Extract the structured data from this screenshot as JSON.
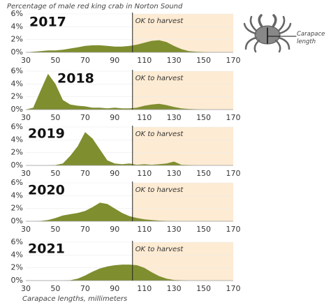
{
  "title": "Percentage of male red king crab in Norton Sound",
  "x_label": "Carapace lengths, millimeters",
  "icon_label": "Carapace length",
  "chart_data": [
    {
      "type": "area",
      "title": "2017",
      "color": "#7f8e2f",
      "x": [
        30,
        35,
        40,
        45,
        50,
        55,
        60,
        65,
        70,
        75,
        80,
        85,
        90,
        95,
        100,
        105,
        110,
        115,
        120,
        125,
        130,
        135,
        140,
        145,
        150,
        155,
        160,
        165,
        170
      ],
      "values": [
        0,
        0.1,
        0.2,
        0.3,
        0.3,
        0.4,
        0.6,
        0.8,
        1.0,
        1.1,
        1.1,
        1.0,
        0.9,
        0.9,
        1.0,
        1.2,
        1.5,
        1.8,
        1.9,
        1.6,
        1.0,
        0.5,
        0.2,
        0.1,
        0.05,
        0,
        0,
        0,
        0
      ],
      "xlim": [
        30,
        170
      ],
      "xticks": [
        30,
        50,
        70,
        90,
        110,
        130,
        150,
        170
      ],
      "ylim": [
        0,
        6
      ],
      "yticks": [
        {
          "value": 0,
          "label": "0%"
        },
        {
          "value": 2,
          "label": "2%"
        },
        {
          "value": 4,
          "label": "4%"
        },
        {
          "value": 6,
          "label": "6%"
        }
      ],
      "threshold": 102,
      "threshold_label": "OK to harvest",
      "shade_color": "#fdebd3",
      "grid": true
    },
    {
      "type": "area",
      "title": "2018",
      "color": "#7f8e2f",
      "x": [
        30,
        35,
        40,
        45,
        50,
        55,
        60,
        65,
        70,
        75,
        80,
        85,
        90,
        95,
        100,
        105,
        110,
        115,
        120,
        125,
        130,
        135,
        140,
        145,
        150,
        155,
        160,
        165,
        170
      ],
      "values": [
        0,
        0.3,
        3.0,
        5.6,
        4.0,
        1.5,
        0.8,
        0.6,
        0.5,
        0.3,
        0.3,
        0.2,
        0.3,
        0.2,
        0.2,
        0.3,
        0.6,
        0.8,
        0.9,
        0.7,
        0.4,
        0.2,
        0.1,
        0.05,
        0,
        0,
        0,
        0,
        0
      ],
      "xlim": [
        30,
        170
      ],
      "xticks": [
        30,
        50,
        70,
        90,
        110,
        130,
        150,
        170
      ],
      "ylim": [
        0,
        6
      ],
      "yticks": [
        {
          "value": 0,
          "label": "0%"
        },
        {
          "value": 2,
          "label": "2%"
        },
        {
          "value": 4,
          "label": "4%"
        },
        {
          "value": 6,
          "label": "6%"
        }
      ],
      "threshold": 102,
      "threshold_label": "OK to harvest",
      "shade_color": "#fdebd3",
      "grid": true
    },
    {
      "type": "area",
      "title": "2019",
      "color": "#7f8e2f",
      "x": [
        30,
        35,
        40,
        45,
        50,
        55,
        60,
        65,
        70,
        75,
        80,
        85,
        90,
        95,
        100,
        105,
        110,
        115,
        120,
        125,
        130,
        135,
        140,
        145,
        150,
        155,
        160,
        165,
        170
      ],
      "values": [
        0,
        0,
        0,
        0,
        0.05,
        0.3,
        1.5,
        3.0,
        5.2,
        4.2,
        2.5,
        0.8,
        0.3,
        0.2,
        0.3,
        0.1,
        0.2,
        0.1,
        0.2,
        0.3,
        0.6,
        0.1,
        0.05,
        0,
        0,
        0,
        0,
        0,
        0
      ],
      "xlim": [
        30,
        170
      ],
      "xticks": [
        30,
        50,
        70,
        90,
        110,
        130,
        150,
        170
      ],
      "ylim": [
        0,
        6
      ],
      "yticks": [
        {
          "value": 0,
          "label": "0%"
        },
        {
          "value": 2,
          "label": "2%"
        },
        {
          "value": 4,
          "label": "4%"
        },
        {
          "value": 6,
          "label": "6%"
        }
      ],
      "threshold": 102,
      "threshold_label": "OK to harvest",
      "shade_color": "#fdebd3",
      "grid": true
    },
    {
      "type": "area",
      "title": "2020",
      "color": "#7f8e2f",
      "x": [
        30,
        35,
        40,
        45,
        50,
        55,
        60,
        65,
        70,
        75,
        80,
        85,
        90,
        95,
        100,
        105,
        110,
        115,
        120,
        125,
        130,
        135,
        140,
        145,
        150,
        155,
        160,
        165,
        170
      ],
      "values": [
        0,
        0,
        0.05,
        0.2,
        0.5,
        0.9,
        1.1,
        1.3,
        1.6,
        2.2,
        2.9,
        2.7,
        2.0,
        1.3,
        0.8,
        0.5,
        0.3,
        0.2,
        0.1,
        0.05,
        0,
        0,
        0,
        0,
        0,
        0,
        0,
        0,
        0
      ],
      "xlim": [
        30,
        170
      ],
      "xticks": [
        30,
        50,
        70,
        90,
        110,
        130,
        150,
        170
      ],
      "ylim": [
        0,
        6
      ],
      "yticks": [
        {
          "value": 0,
          "label": "0%"
        },
        {
          "value": 2,
          "label": "2%"
        },
        {
          "value": 4,
          "label": "4%"
        },
        {
          "value": 6,
          "label": "6%"
        }
      ],
      "threshold": 102,
      "threshold_label": "OK to harvest",
      "shade_color": "#fdebd3",
      "grid": true
    },
    {
      "type": "area",
      "title": "2021",
      "color": "#7f8e2f",
      "x": [
        30,
        35,
        40,
        45,
        50,
        55,
        60,
        65,
        70,
        75,
        80,
        85,
        90,
        95,
        100,
        105,
        110,
        115,
        120,
        125,
        130,
        135,
        140,
        145,
        150,
        155,
        160,
        165,
        170
      ],
      "values": [
        0,
        0,
        0,
        0,
        0,
        0,
        0.05,
        0.3,
        0.8,
        1.4,
        1.9,
        2.2,
        2.4,
        2.5,
        2.5,
        2.4,
        2.0,
        1.3,
        0.7,
        0.3,
        0.1,
        0.05,
        0,
        0,
        0,
        0,
        0,
        0,
        0
      ],
      "xlim": [
        30,
        170
      ],
      "xticks": [
        30,
        50,
        70,
        90,
        110,
        130,
        150,
        170
      ],
      "ylim": [
        0,
        6
      ],
      "yticks": [
        {
          "value": 0,
          "label": "0%"
        },
        {
          "value": 2,
          "label": "2%"
        },
        {
          "value": 4,
          "label": "4%"
        },
        {
          "value": 6,
          "label": "6%"
        }
      ],
      "threshold": 102,
      "threshold_label": "OK to harvest",
      "shade_color": "#fdebd3",
      "grid": true
    }
  ]
}
